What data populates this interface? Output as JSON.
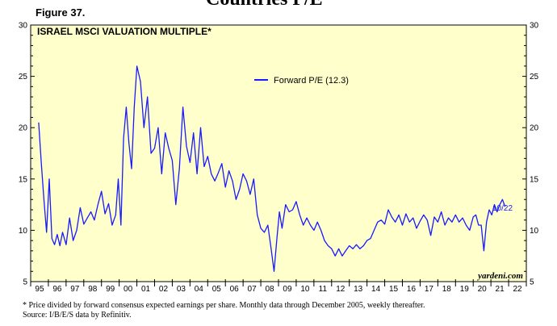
{
  "header_title": "Countries P/E",
  "figure_label": "Figure 37.",
  "chart_data": {
    "type": "line",
    "title": "ISRAEL MSCI VALUATION MULTIPLE*",
    "xlabel": "",
    "ylabel": "",
    "xlim": [
      1995,
      2023
    ],
    "ylim": [
      5,
      30
    ],
    "y_ticks": [
      5,
      10,
      15,
      20,
      25,
      30
    ],
    "x_tick_labels": [
      "95",
      "96",
      "97",
      "98",
      "99",
      "00",
      "01",
      "02",
      "03",
      "04",
      "05",
      "06",
      "07",
      "08",
      "09",
      "10",
      "11",
      "12",
      "13",
      "14",
      "15",
      "16",
      "17",
      "18",
      "19",
      "20",
      "21",
      "22"
    ],
    "grid": false,
    "legend_position": "top-center",
    "series": [
      {
        "name": "Forward P/E (12.3)",
        "color": "#1a1aff",
        "end_label": "10/22",
        "x": [
          1995.45,
          1995.6,
          1995.75,
          1995.9,
          1996.05,
          1996.2,
          1996.35,
          1996.5,
          1996.65,
          1996.8,
          1997.0,
          1997.2,
          1997.4,
          1997.6,
          1997.8,
          1998.0,
          1998.2,
          1998.4,
          1998.6,
          1998.8,
          1999.0,
          1999.2,
          1999.4,
          1999.6,
          1999.8,
          1999.95,
          2000.1,
          2000.25,
          2000.4,
          2000.55,
          2000.7,
          2000.85,
          2001.0,
          2001.2,
          2001.4,
          2001.6,
          2001.8,
          2002.0,
          2002.2,
          2002.4,
          2002.6,
          2002.8,
          2003.0,
          2003.2,
          2003.4,
          2003.6,
          2003.8,
          2004.0,
          2004.2,
          2004.4,
          2004.6,
          2004.8,
          2005.0,
          2005.2,
          2005.4,
          2005.6,
          2005.8,
          2006.0,
          2006.2,
          2006.4,
          2006.6,
          2006.8,
          2007.0,
          2007.2,
          2007.4,
          2007.6,
          2007.8,
          2008.0,
          2008.2,
          2008.4,
          2008.6,
          2008.75,
          2008.9,
          2009.05,
          2009.2,
          2009.4,
          2009.6,
          2009.8,
          2010.0,
          2010.2,
          2010.4,
          2010.6,
          2010.8,
          2011.0,
          2011.2,
          2011.4,
          2011.6,
          2011.8,
          2012.0,
          2012.2,
          2012.4,
          2012.6,
          2012.8,
          2013.0,
          2013.2,
          2013.4,
          2013.6,
          2013.8,
          2014.0,
          2014.2,
          2014.4,
          2014.6,
          2014.8,
          2015.0,
          2015.2,
          2015.4,
          2015.6,
          2015.8,
          2016.0,
          2016.2,
          2016.4,
          2016.6,
          2016.8,
          2017.0,
          2017.2,
          2017.4,
          2017.6,
          2017.8,
          2018.0,
          2018.2,
          2018.4,
          2018.6,
          2018.8,
          2019.0,
          2019.2,
          2019.4,
          2019.6,
          2019.8,
          2020.0,
          2020.15,
          2020.3,
          2020.45,
          2020.6,
          2020.75,
          2020.9,
          2021.05,
          2021.2,
          2021.35,
          2021.5,
          2021.65,
          2021.8
        ],
        "values": [
          20.5,
          16.5,
          13.0,
          9.8,
          15.0,
          9.2,
          8.6,
          9.6,
          8.5,
          9.8,
          8.6,
          11.2,
          9.0,
          10.0,
          12.2,
          10.6,
          11.2,
          11.8,
          11.0,
          12.5,
          13.8,
          11.6,
          12.6,
          10.5,
          11.5,
          15.0,
          10.5,
          19.0,
          22.0,
          18.5,
          16.0,
          22.0,
          26.0,
          24.5,
          20.0,
          23.0,
          17.5,
          18.0,
          20.0,
          15.5,
          19.5,
          18.0,
          16.8,
          12.5,
          16.0,
          22.0,
          18.2,
          16.6,
          19.5,
          15.5,
          20.0,
          16.2,
          17.2,
          15.5,
          14.8,
          15.6,
          16.5,
          14.2,
          15.8,
          14.8,
          13.0,
          14.0,
          15.5,
          14.8,
          13.5,
          15.0,
          11.5,
          10.2,
          9.8,
          10.5,
          8.0,
          6.0,
          9.0,
          11.8,
          10.2,
          12.5,
          11.8,
          12.0,
          12.8,
          11.5,
          10.5,
          11.2,
          10.5,
          10.0,
          10.8,
          10.0,
          9.0,
          8.5,
          8.2,
          7.5,
          8.2,
          7.5,
          8.0,
          8.5,
          8.2,
          8.6,
          8.2,
          8.5,
          9.0,
          9.2,
          10.0,
          10.8,
          11.0,
          10.6,
          12.0,
          11.3,
          10.8,
          11.5,
          10.5,
          11.6,
          10.8,
          11.2,
          10.2,
          10.9,
          11.5,
          11.0,
          9.5,
          11.3,
          10.8,
          11.8,
          10.5,
          11.2,
          10.8,
          11.5,
          10.8,
          11.2,
          10.5,
          10.0,
          11.3,
          11.5,
          10.5,
          10.5,
          8.0,
          10.8,
          12.0,
          11.5,
          12.5,
          11.8,
          12.5,
          13.0,
          12.3
        ]
      }
    ]
  },
  "watermark": "yardeni.com",
  "footnote": {
    "line1": "*  Price divided by forward consensus expected earnings per share. Monthly data through December 2005, weekly thereafter.",
    "line2": "Source: I/B/E/S data by Refinitiv."
  }
}
